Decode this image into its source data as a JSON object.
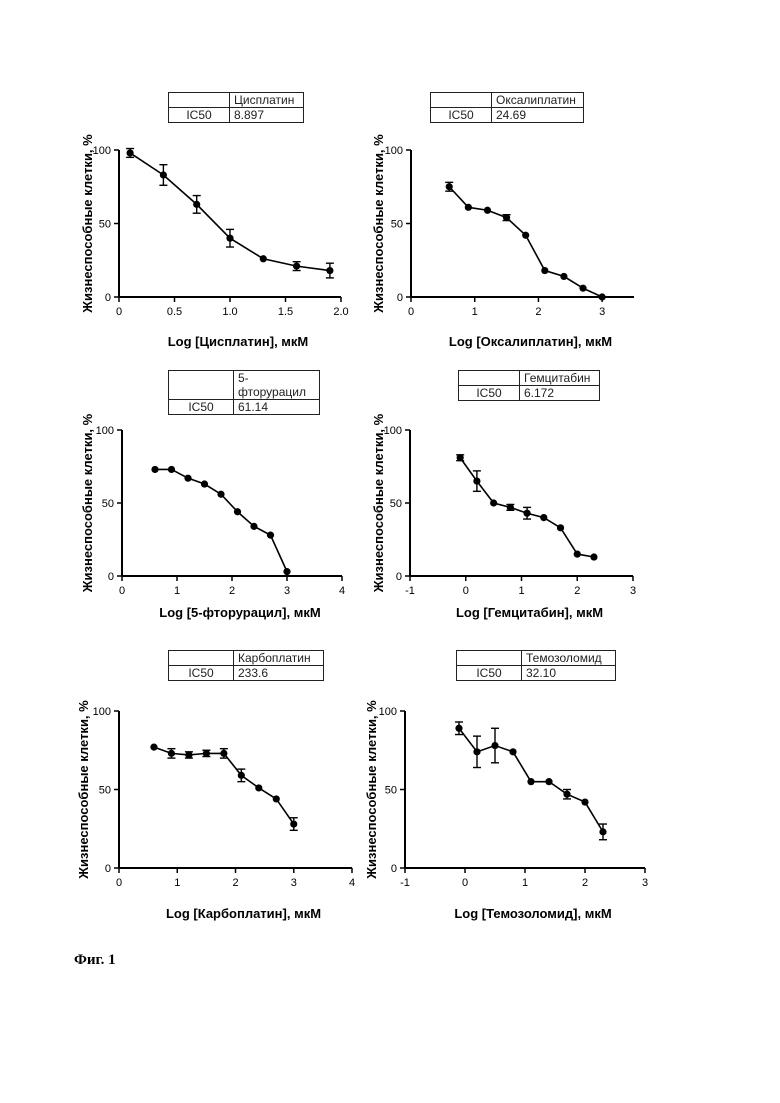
{
  "figure_caption": "Фиг. 1",
  "chart_data": [
    {
      "type": "line",
      "drug": "Цисплатин",
      "ic50_label": "IC50",
      "ic50_value": "8.897",
      "xlabel": "Log [Цисплатин], мкМ",
      "ylabel": "Жизнеспособные клетки, %",
      "xlim": [
        0,
        2.0
      ],
      "xticks": [
        0,
        0.5,
        1.0,
        1.5,
        2.0
      ],
      "xtick_labels": [
        "0",
        "0.5",
        "1.0",
        "1.5",
        "2.0"
      ],
      "ylim": [
        0,
        100
      ],
      "yticks": [
        0,
        50,
        100
      ],
      "ytick_labels": [
        "0",
        "50",
        "100"
      ],
      "x": [
        0.1,
        0.4,
        0.7,
        1.0,
        1.3,
        1.6,
        1.9
      ],
      "y": [
        98,
        83,
        63,
        40,
        26,
        21,
        18
      ],
      "err": [
        3,
        7,
        6,
        6,
        0,
        3,
        5
      ]
    },
    {
      "type": "line",
      "drug": "Оксалиплатин",
      "ic50_label": "IC50",
      "ic50_value": "24.69",
      "xlabel": "Log [Оксалиплатин], мкМ",
      "ylabel": "Жизнеспособные клетки, %",
      "xlim": [
        0,
        3.5
      ],
      "xticks": [
        0,
        1,
        2,
        3
      ],
      "xtick_labels": [
        "0",
        "1",
        "2",
        "3"
      ],
      "ylim": [
        0,
        100
      ],
      "yticks": [
        0,
        50,
        100
      ],
      "ytick_labels": [
        "0",
        "50",
        "100"
      ],
      "x": [
        0.6,
        0.9,
        1.2,
        1.5,
        1.8,
        2.1,
        2.4,
        2.7,
        3.0
      ],
      "y": [
        75,
        61,
        59,
        54,
        42,
        18,
        14,
        6,
        0
      ],
      "err": [
        3,
        0,
        0,
        2,
        0,
        0,
        0,
        0,
        0
      ]
    },
    {
      "type": "line",
      "drug": "5-фторурацил",
      "ic50_label": "IC50",
      "ic50_value": "61.14",
      "xlabel": "Log [5-фторурацил], мкМ",
      "ylabel": "Жизнеспособные клетки, %",
      "xlim": [
        0,
        4
      ],
      "xticks": [
        0,
        1,
        2,
        3,
        4
      ],
      "xtick_labels": [
        "0",
        "1",
        "2",
        "3",
        "4"
      ],
      "ylim": [
        0,
        100
      ],
      "yticks": [
        0,
        50,
        100
      ],
      "ytick_labels": [
        "0",
        "50",
        "100"
      ],
      "x": [
        0.6,
        0.9,
        1.2,
        1.5,
        1.8,
        2.1,
        2.4,
        2.7,
        3.0
      ],
      "y": [
        73,
        73,
        67,
        63,
        56,
        44,
        34,
        28,
        3
      ],
      "err": [
        0,
        0,
        0,
        0,
        0,
        0,
        0,
        0,
        0
      ]
    },
    {
      "type": "line",
      "drug": "Гемцитабин",
      "ic50_label": "IC50",
      "ic50_value": "6.172",
      "xlabel": "Log [Гемцитабин], мкМ",
      "ylabel": "Жизнеспособные клетки, %",
      "xlim": [
        -1,
        3
      ],
      "xticks": [
        -1,
        0,
        1,
        2,
        3
      ],
      "xtick_labels": [
        "-1",
        "0",
        "1",
        "2",
        "3"
      ],
      "ylim": [
        0,
        100
      ],
      "yticks": [
        0,
        50,
        100
      ],
      "ytick_labels": [
        "0",
        "50",
        "100"
      ],
      "x": [
        -0.1,
        0.2,
        0.5,
        0.8,
        1.1,
        1.4,
        1.7,
        2.0,
        2.3
      ],
      "y": [
        81,
        65,
        50,
        47,
        43,
        40,
        33,
        15,
        13
      ],
      "err": [
        2,
        7,
        0,
        2,
        4,
        0,
        0,
        0,
        0
      ]
    },
    {
      "type": "line",
      "drug": "Карбоплатин",
      "ic50_label": "IC50",
      "ic50_value": "233.6",
      "xlabel": "Log [Карбоплатин], мкМ",
      "ylabel": "Жизнеспособные клетки, %",
      "xlim": [
        0,
        4
      ],
      "xticks": [
        0,
        1,
        2,
        3,
        4
      ],
      "xtick_labels": [
        "0",
        "1",
        "2",
        "3",
        "4"
      ],
      "ylim": [
        0,
        100
      ],
      "yticks": [
        0,
        50,
        100
      ],
      "ytick_labels": [
        "0",
        "50",
        "100"
      ],
      "x": [
        0.6,
        0.9,
        1.2,
        1.5,
        1.8,
        2.1,
        2.4,
        2.7,
        3.0
      ],
      "y": [
        77,
        73,
        72,
        73,
        73,
        59,
        51,
        44,
        28
      ],
      "err": [
        0,
        3,
        2,
        2,
        3,
        4,
        0,
        0,
        4
      ]
    },
    {
      "type": "line",
      "drug": "Темозоломид",
      "ic50_label": "IC50",
      "ic50_value": "32.10",
      "xlabel": "Log [Темозоломид], мкМ",
      "ylabel": "Жизнеспособные клетки, %",
      "xlim": [
        -1,
        3
      ],
      "xticks": [
        -1,
        0,
        1,
        2,
        3
      ],
      "xtick_labels": [
        "-1",
        "0",
        "1",
        "2",
        "3"
      ],
      "ylim": [
        0,
        100
      ],
      "yticks": [
        0,
        50,
        100
      ],
      "ytick_labels": [
        "0",
        "50",
        "100"
      ],
      "x": [
        -0.1,
        0.2,
        0.5,
        0.8,
        1.1,
        1.4,
        1.7,
        2.0,
        2.3
      ],
      "y": [
        89,
        74,
        78,
        74,
        55,
        55,
        47,
        42,
        23
      ],
      "err": [
        4,
        10,
        11,
        0,
        0,
        0,
        3,
        0,
        5
      ]
    }
  ]
}
